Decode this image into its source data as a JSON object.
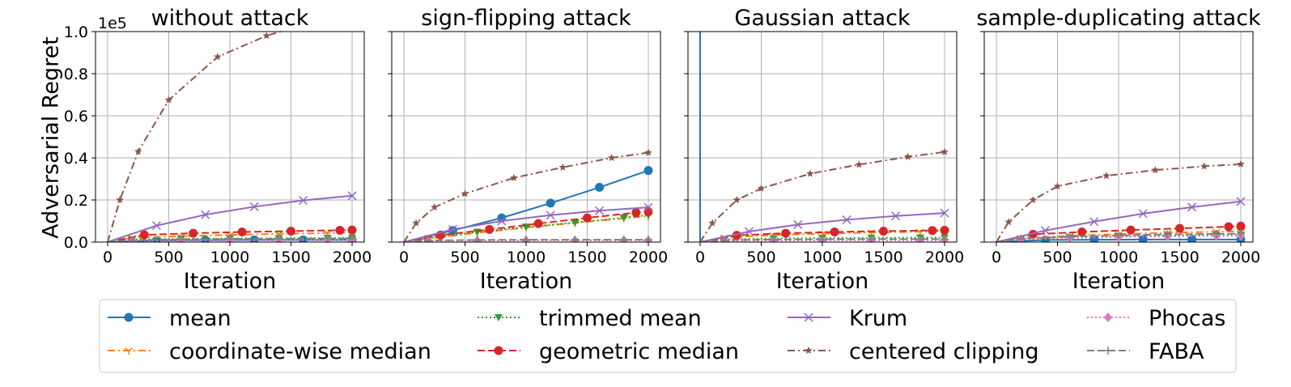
{
  "chart_data": {
    "type": "line",
    "ylabel": "Adversarial Regret",
    "y_multiplier_label": "1e5",
    "y_scale_factor": 100000,
    "ylim": [
      0,
      100000
    ],
    "xlim": [
      0,
      2000
    ],
    "x_ticks": [
      0,
      500,
      1000,
      1500,
      2000
    ],
    "y_ticks": [
      0,
      20000,
      40000,
      60000,
      80000,
      100000
    ],
    "y_tick_labels": [
      "0.0",
      "0.2",
      "0.4",
      "0.6",
      "0.8",
      "1.0"
    ],
    "grid": true,
    "legend_placement": "bottom",
    "series_styles": [
      {
        "name": "mean",
        "color": "#1f77b4",
        "dash": "",
        "marker": "circle"
      },
      {
        "name": "coordinate-wise median",
        "color": "#ff7f0e",
        "dash": "dashdot",
        "marker": "tri"
      },
      {
        "name": "trimmed mean",
        "color": "#2ca02c",
        "dash": "dotted",
        "marker": "triangle-down"
      },
      {
        "name": "geometric median",
        "color": "#d62728",
        "dash": "dashed",
        "marker": "circle"
      },
      {
        "name": "Krum",
        "color": "#9467bd",
        "dash": "",
        "marker": "x"
      },
      {
        "name": "centered clipping",
        "color": "#8c564b",
        "dash": "dashdot",
        "marker": "star"
      },
      {
        "name": "Phocas",
        "color": "#e377c2",
        "dash": "dotted",
        "marker": "diamond"
      },
      {
        "name": "FABA",
        "color": "#7f7f7f",
        "dash": "dashed",
        "marker": "plus"
      }
    ],
    "panels": [
      {
        "title": "without attack",
        "xlabel": "Iteration",
        "series": [
          {
            "name": "mean",
            "x": [
              0,
              400,
              800,
              1200,
              1600,
              2000
            ],
            "y": [
              0,
              800,
              900,
              1000,
              1000,
              1000
            ]
          },
          {
            "name": "coordinate-wise median",
            "x": [
              0,
              200,
              600,
              1000,
              1400,
              1800,
              2000
            ],
            "y": [
              0,
              2000,
              2800,
              3400,
              3900,
              4300,
              4500
            ]
          },
          {
            "name": "trimmed mean",
            "x": [
              0,
              200,
              600,
              1000,
              1400,
              1800,
              2000
            ],
            "y": [
              0,
              1200,
              1500,
              1700,
              1800,
              1900,
              2000
            ]
          },
          {
            "name": "geometric median",
            "x": [
              0,
              300,
              700,
              1100,
              1500,
              1900,
              2000
            ],
            "y": [
              0,
              3400,
              4200,
              4800,
              5200,
              5600,
              5700
            ]
          },
          {
            "name": "Krum",
            "x": [
              0,
              400,
              800,
              1200,
              1600,
              2000
            ],
            "y": [
              0,
              7800,
              13000,
              16800,
              19800,
              22000
            ]
          },
          {
            "name": "centered clipping",
            "x": [
              0,
              100,
              250,
              500,
              900,
              1300,
              1500
            ],
            "y": [
              0,
              20000,
              43000,
              67500,
              88000,
              98000,
              101500
            ]
          },
          {
            "name": "Phocas",
            "x": [
              0,
              200,
              600,
              1000,
              1400,
              1800,
              2000
            ],
            "y": [
              0,
              500,
              700,
              800,
              900,
              900,
              900
            ]
          },
          {
            "name": "FABA",
            "x": [
              0,
              200,
              600,
              1000,
              1400,
              1800,
              2000
            ],
            "y": [
              0,
              900,
              1300,
              1500,
              1600,
              1700,
              1700
            ]
          }
        ]
      },
      {
        "title": "sign-flipping attack",
        "xlabel": "Iteration",
        "series": [
          {
            "name": "mean",
            "x": [
              0,
              400,
              800,
              1200,
              1600,
              2000
            ],
            "y": [
              0,
              5500,
              11500,
              18500,
              26000,
              34000
            ]
          },
          {
            "name": "coordinate-wise median",
            "x": [
              0,
              200,
              600,
              1000,
              1400,
              1800,
              2000
            ],
            "y": [
              0,
              1600,
              4400,
              6900,
              9100,
              11300,
              12300
            ]
          },
          {
            "name": "trimmed mean",
            "x": [
              0,
              200,
              600,
              1000,
              1400,
              1800,
              2000
            ],
            "y": [
              0,
              1800,
              4800,
              7200,
              9300,
              11600,
              12800
            ]
          },
          {
            "name": "geometric median",
            "x": [
              0,
              300,
              700,
              1100,
              1500,
              1900,
              2000
            ],
            "y": [
              0,
              3300,
              6000,
              8800,
              11500,
              14000,
              14500
            ]
          },
          {
            "name": "Krum",
            "x": [
              0,
              400,
              800,
              1200,
              1600,
              2000
            ],
            "y": [
              0,
              6000,
              10000,
              12800,
              14900,
              16500
            ]
          },
          {
            "name": "centered clipping",
            "x": [
              0,
              100,
              250,
              500,
              900,
              1300,
              1700,
              2000
            ],
            "y": [
              0,
              9000,
              16500,
              23000,
              30500,
              35500,
              40000,
              42500
            ]
          },
          {
            "name": "Phocas",
            "x": [
              0,
              200,
              600,
              1000,
              1400,
              1800,
              2000
            ],
            "y": [
              0,
              600,
              700,
              800,
              800,
              800,
              800
            ]
          },
          {
            "name": "FABA",
            "x": [
              0,
              200,
              600,
              1000,
              1400,
              1800,
              2000
            ],
            "y": [
              0,
              800,
              1000,
              1100,
              1100,
              1100,
              1100
            ]
          }
        ]
      },
      {
        "title": "Gaussian attack",
        "xlabel": "Iteration",
        "series": [
          {
            "name": "mean",
            "x": [
              0,
              0
            ],
            "y": [
              0,
              100000
            ]
          },
          {
            "name": "coordinate-wise median",
            "x": [
              0,
              200,
              600,
              1000,
              1400,
              1800,
              2000
            ],
            "y": [
              0,
              2200,
              3300,
              4000,
              4500,
              4900,
              5100
            ]
          },
          {
            "name": "trimmed mean",
            "x": [
              0,
              200,
              600,
              1000,
              1400,
              1800,
              2000
            ],
            "y": [
              0,
              1300,
              1700,
              1900,
              2000,
              2100,
              2100
            ]
          },
          {
            "name": "geometric median",
            "x": [
              0,
              300,
              700,
              1100,
              1500,
              1900,
              2000
            ],
            "y": [
              0,
              3200,
              4200,
              4800,
              5200,
              5500,
              5600
            ]
          },
          {
            "name": "Krum",
            "x": [
              0,
              400,
              800,
              1200,
              1600,
              2000
            ],
            "y": [
              0,
              5000,
              8300,
              10600,
              12400,
              13800
            ]
          },
          {
            "name": "centered clipping",
            "x": [
              0,
              100,
              300,
              500,
              900,
              1300,
              1700,
              2000
            ],
            "y": [
              0,
              9000,
              20000,
              25500,
              32500,
              36800,
              40500,
              42800
            ]
          },
          {
            "name": "Phocas",
            "x": [
              0,
              200,
              600,
              1000,
              1400,
              1800,
              2000
            ],
            "y": [
              0,
              500,
              700,
              800,
              800,
              800,
              800
            ]
          },
          {
            "name": "FABA",
            "x": [
              0,
              200,
              600,
              1000,
              1400,
              1800,
              2000
            ],
            "y": [
              0,
              900,
              1200,
              1300,
              1400,
              1400,
              1400
            ]
          }
        ]
      },
      {
        "title": "sample-duplicating attack",
        "xlabel": "Iteration",
        "series": [
          {
            "name": "mean",
            "x": [
              0,
              400,
              800,
              1200,
              1600,
              2000
            ],
            "y": [
              0,
              1000,
              1100,
              1200,
              1200,
              1200
            ]
          },
          {
            "name": "coordinate-wise median",
            "x": [
              0,
              200,
              600,
              1000,
              1400,
              1800,
              2000
            ],
            "y": [
              0,
              1900,
              3000,
              3800,
              4400,
              4900,
              5100
            ]
          },
          {
            "name": "trimmed mean",
            "x": [
              0,
              200,
              600,
              1000,
              1400,
              1800,
              2000
            ],
            "y": [
              0,
              1500,
              2200,
              2700,
              3100,
              3400,
              3500
            ]
          },
          {
            "name": "geometric median",
            "x": [
              0,
              300,
              700,
              1100,
              1500,
              1900,
              2000
            ],
            "y": [
              0,
              3700,
              4800,
              5700,
              6500,
              7300,
              7600
            ]
          },
          {
            "name": "Krum",
            "x": [
              0,
              400,
              800,
              1200,
              1600,
              2000
            ],
            "y": [
              0,
              5500,
              9700,
              13500,
              16600,
              19300
            ]
          },
          {
            "name": "centered clipping",
            "x": [
              0,
              100,
              300,
              500,
              900,
              1300,
              1700,
              2000
            ],
            "y": [
              0,
              9500,
              20000,
              26500,
              31500,
              34200,
              36000,
              37000
            ]
          },
          {
            "name": "Phocas",
            "x": [
              0,
              200,
              600,
              1000,
              1400,
              1800,
              2000
            ],
            "y": [
              0,
              1300,
              2000,
              2400,
              2700,
              2900,
              3000
            ]
          },
          {
            "name": "FABA",
            "x": [
              0,
              200,
              600,
              1000,
              1400,
              1800,
              2000
            ],
            "y": [
              0,
              1600,
              2600,
              3200,
              3600,
              3900,
              4000
            ]
          }
        ]
      }
    ]
  }
}
